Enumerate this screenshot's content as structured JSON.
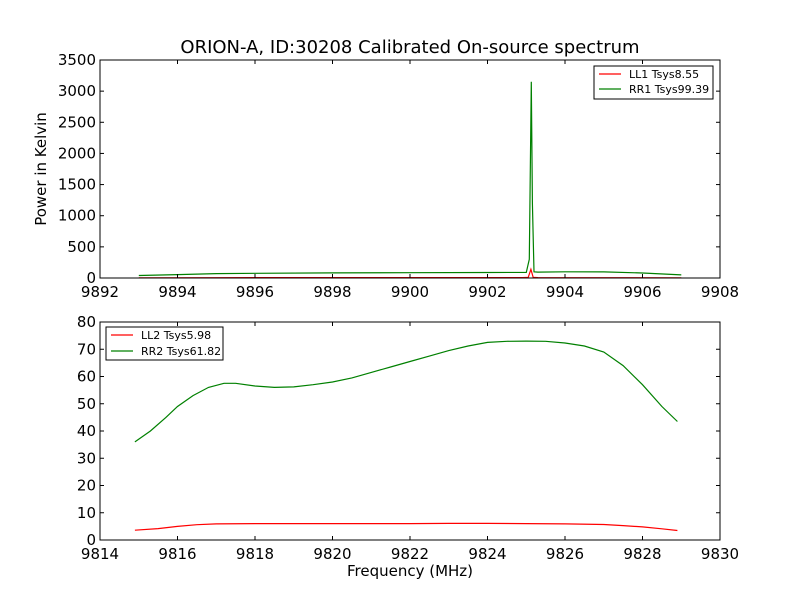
{
  "chart_data": [
    {
      "type": "line",
      "title": "ORION-A, ID:30208 Calibrated On-source spectrum",
      "xlabel": "",
      "ylabel": "Power in Kelvin",
      "xlim": [
        9892,
        9908
      ],
      "ylim": [
        0,
        3500
      ],
      "xticks": [
        9892,
        9894,
        9896,
        9898,
        9900,
        9902,
        9904,
        9906,
        9908
      ],
      "yticks": [
        0,
        500,
        1000,
        1500,
        2000,
        2500,
        3000,
        3500
      ],
      "legend_position": "top-right",
      "series": [
        {
          "name": "LL1 Tsys8.55",
          "color": "#ff0000",
          "x": [
            9893.0,
            9895.0,
            9897.0,
            9899.0,
            9901.0,
            9902.9,
            9903.05,
            9903.12,
            9903.18,
            9903.3,
            9905.0,
            9907.0
          ],
          "y": [
            3,
            5,
            6,
            6,
            6,
            6,
            10,
            140,
            10,
            6,
            5,
            4
          ]
        },
        {
          "name": "RR1 Tsys99.39",
          "color": "#008000",
          "x": [
            9893.0,
            9894.0,
            9895.0,
            9896.0,
            9898.0,
            9900.0,
            9902.0,
            9903.0,
            9903.08,
            9903.13,
            9903.16,
            9903.2,
            9903.3,
            9904.0,
            9905.0,
            9906.0,
            9907.0
          ],
          "y": [
            40,
            55,
            70,
            75,
            82,
            85,
            88,
            90,
            300,
            3150,
            1200,
            100,
            95,
            100,
            98,
            80,
            50
          ]
        }
      ]
    },
    {
      "type": "line",
      "title": "",
      "xlabel": "Frequency (MHz)",
      "ylabel": "",
      "xlim": [
        9814,
        9830
      ],
      "ylim": [
        0,
        80
      ],
      "xticks": [
        9814,
        9816,
        9818,
        9820,
        9822,
        9824,
        9826,
        9828,
        9830
      ],
      "yticks": [
        0,
        10,
        20,
        30,
        40,
        50,
        60,
        70,
        80
      ],
      "legend_position": "top-left",
      "series": [
        {
          "name": "LL2 Tsys5.98",
          "color": "#ff0000",
          "x": [
            9814.9,
            9815.5,
            9816.0,
            9816.5,
            9817.0,
            9818.0,
            9819.0,
            9820.0,
            9821.0,
            9822.0,
            9823.0,
            9824.0,
            9825.0,
            9826.0,
            9827.0,
            9827.5,
            9828.0,
            9828.5,
            9828.9
          ],
          "y": [
            3.6,
            4.2,
            5.0,
            5.6,
            5.9,
            6.0,
            6.0,
            6.0,
            6.0,
            6.0,
            6.1,
            6.1,
            6.0,
            5.9,
            5.7,
            5.3,
            4.8,
            4.1,
            3.5
          ]
        },
        {
          "name": "RR2 Tsys61.82",
          "color": "#008000",
          "x": [
            9814.9,
            9815.3,
            9815.7,
            9816.0,
            9816.4,
            9816.8,
            9817.2,
            9817.5,
            9818.0,
            9818.5,
            9819.0,
            9819.5,
            9820.0,
            9820.5,
            9821.0,
            9821.5,
            9822.0,
            9822.5,
            9823.0,
            9823.5,
            9824.0,
            9824.5,
            9825.0,
            9825.5,
            9826.0,
            9826.5,
            9827.0,
            9827.5,
            9828.0,
            9828.5,
            9828.9
          ],
          "y": [
            36,
            40,
            45,
            49,
            53,
            56,
            57.5,
            57.5,
            56.5,
            56,
            56.2,
            57,
            58,
            59.5,
            61.5,
            63.5,
            65.5,
            67.5,
            69.5,
            71.2,
            72.5,
            72.9,
            73.0,
            72.9,
            72.3,
            71.2,
            69,
            64,
            57,
            49,
            43.5
          ]
        }
      ]
    }
  ]
}
